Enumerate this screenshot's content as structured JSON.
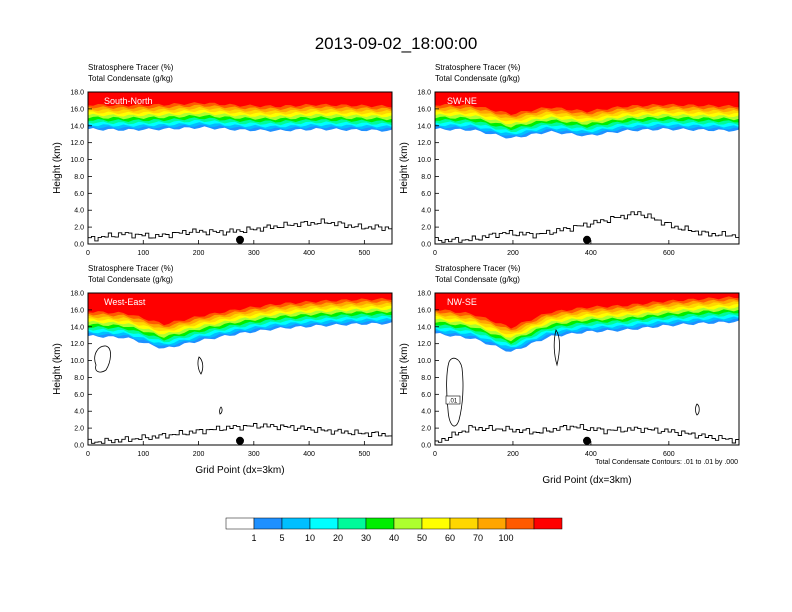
{
  "chart_data": {
    "type": "contour-cross-section",
    "title": "2013-09-02_18:00:00",
    "panel_subtitles": [
      "Stratosphere Tracer   (%)",
      "Total Condensate   (g/kg)"
    ],
    "xlabel": "Grid Point (dx=3km)",
    "ylabel": "Height (km)",
    "ylim": [
      0,
      18
    ],
    "yticks": [
      "0.0",
      "2.0",
      "4.0",
      "6.0",
      "8.0",
      "10.0",
      "12.0",
      "14.0",
      "16.0",
      "18.0"
    ],
    "contour_note": "Total Condensate Contours: .01 to .01 by .000",
    "colorbar": {
      "labels": [
        "1",
        "5",
        "10",
        "20",
        "30",
        "40",
        "50",
        "60",
        "70",
        "100"
      ],
      "colors": [
        "#ffffff",
        "#1e90ff",
        "#00bfff",
        "#00ffff",
        "#00fa9a",
        "#00ee00",
        "#adff2f",
        "#ffff00",
        "#ffd700",
        "#ffa500",
        "#ff5a00",
        "#ff0000"
      ]
    },
    "panels": [
      {
        "label": "South-North",
        "xmax": 550,
        "xticks": [
          "0",
          "100",
          "200",
          "300",
          "400",
          "500"
        ],
        "tracer_base_km": [
          13.6,
          13.5,
          13.6,
          13.8,
          13.5,
          13.4,
          13.6,
          13.5,
          13.4
        ],
        "terrain_km": [
          0.6,
          1.2,
          0.9,
          1.5,
          1.4,
          1.8,
          2.3,
          2.6,
          2.0,
          1.9
        ],
        "marker_x": 275,
        "contour_label": ""
      },
      {
        "label": "SW-NE",
        "xmax": 780,
        "xticks": [
          "0",
          "200",
          "400",
          "600"
        ],
        "tracer_base_km": [
          13.6,
          13.5,
          12.5,
          13.3,
          12.8,
          13.4,
          13.6,
          13.5,
          13.4
        ],
        "terrain_km": [
          0.4,
          0.5,
          1.3,
          1.1,
          1.9,
          2.8,
          3.7,
          2.1,
          1.2,
          1.0
        ],
        "marker_x": 390,
        "contour_label": ""
      },
      {
        "label": "West-East",
        "xmax": 550,
        "xticks": [
          "0",
          "100",
          "200",
          "300",
          "400",
          "500"
        ],
        "tracer_base_km": [
          12.9,
          12.7,
          11.4,
          12.4,
          13.2,
          13.8,
          14.1,
          14.3,
          14.4
        ],
        "terrain_km": [
          0.3,
          0.6,
          1.0,
          1.5,
          2.0,
          2.3,
          2.1,
          1.7,
          1.4,
          1.2
        ],
        "marker_x": 275,
        "contour_label": ""
      },
      {
        "label": "NW-SE",
        "xmax": 780,
        "xticks": [
          "0",
          "200",
          "400",
          "600"
        ],
        "tracer_base_km": [
          13.2,
          12.6,
          11.0,
          12.8,
          13.4,
          13.6,
          14.1,
          14.4,
          14.6
        ],
        "terrain_km": [
          0.3,
          2.0,
          1.9,
          1.5,
          2.2,
          1.7,
          1.9,
          1.6,
          1.0,
          0.5
        ],
        "marker_x": 390,
        "contour_label": ".01"
      }
    ]
  }
}
